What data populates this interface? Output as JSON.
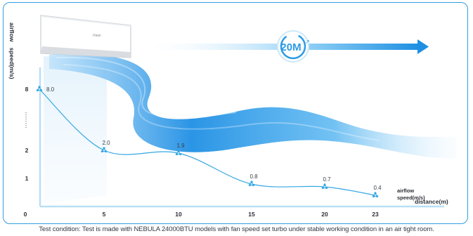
{
  "chart_data": {
    "type": "line",
    "ylabel": "airflow speed(m/s)",
    "xlabel": "distance(m)",
    "series": [
      {
        "name": "airflow speed(m/s)",
        "x": [
          1,
          5,
          10,
          15,
          20,
          23
        ],
        "values": [
          8.0,
          2.0,
          1.9,
          0.8,
          0.7,
          0.4
        ],
        "labels": [
          "8.0",
          "2.0",
          "1.9",
          "0.8",
          "0.7",
          "0.4"
        ]
      }
    ],
    "x_ticks": [
      "0",
      "5",
      "10",
      "15",
      "20",
      "23"
    ],
    "y_ticks": [
      "8",
      "2",
      "1"
    ],
    "xlim": [
      0,
      26
    ],
    "ylim": [
      0,
      8.6
    ],
    "grid": false,
    "legend": "bottom-right",
    "badge_label": "20M",
    "brand_label": "Haier",
    "colors": {
      "line": "#36a7e3",
      "accent": "#2f9fe0",
      "flow": "#1f8fe4"
    }
  },
  "caption": "Test condition: Test is made with NEBULA 24000BTU models with fan speed  set turbo under stable working condition in an air tight room."
}
